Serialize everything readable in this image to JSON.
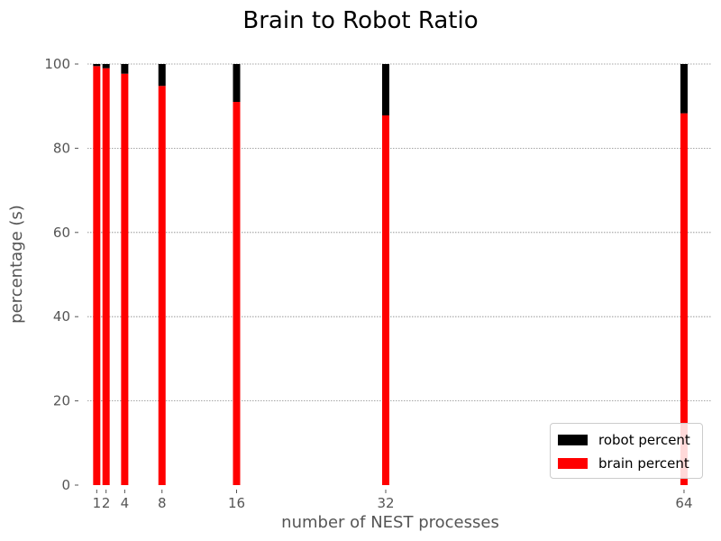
{
  "chart_data": {
    "type": "bar",
    "stacked": true,
    "title": "Brain to Robot Ratio",
    "xlabel": "number of NEST processes",
    "ylabel": "percentage (s)",
    "x": [
      1,
      2,
      4,
      8,
      16,
      32,
      64
    ],
    "x_tick_labels": [
      "1",
      "2",
      "4",
      "8",
      "16",
      "32",
      "64"
    ],
    "ylim": [
      0,
      100
    ],
    "y_ticks": [
      0,
      20,
      40,
      60,
      80,
      100
    ],
    "grid": "y-dotted",
    "legend_position": "bottom-right",
    "series": [
      {
        "name": "brain percent",
        "color": "#ff0000",
        "values": [
          99.5,
          99,
          97.7,
          94.8,
          91,
          87.8,
          88.3
        ]
      },
      {
        "name": "robot percent",
        "color": "#000000",
        "values": [
          0.5,
          1,
          2.3,
          5.2,
          9,
          12.2,
          11.7
        ]
      }
    ]
  },
  "legend": {
    "items": [
      {
        "label": "robot percent",
        "color": "#000000"
      },
      {
        "label": "brain percent",
        "color": "#ff0000"
      }
    ]
  }
}
